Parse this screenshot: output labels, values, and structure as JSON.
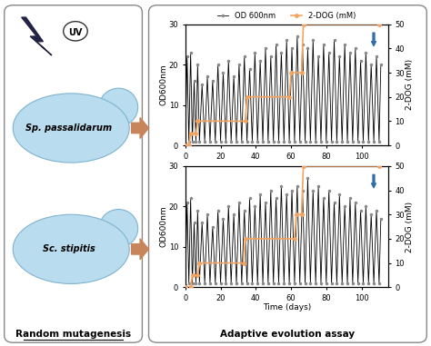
{
  "left_panel": {
    "label": "Random mutagenesis",
    "icon": "UV",
    "strains": [
      "Sp. passalidarum",
      "Sc. stipitis"
    ]
  },
  "right_panel": {
    "label": "Adaptive evolution assay"
  },
  "chart_data": [
    {
      "type": "line",
      "y_label": "OD600nm",
      "y2_label": "2-DOG (mM)",
      "legend": "top",
      "xlim": [
        0,
        115
      ],
      "xticks": [
        0,
        20,
        40,
        60,
        80,
        100
      ],
      "ylim": [
        0,
        30
      ],
      "yticks": [
        0,
        10,
        20,
        30
      ],
      "y2lim": [
        0,
        50
      ],
      "y2ticks": [
        0,
        10,
        20,
        30,
        40,
        50
      ],
      "series": [
        {
          "name": "OD 600nm",
          "color": "#000000",
          "marker": "o",
          "line_style": "solid",
          "x": [
            0,
            1,
            2,
            3,
            4,
            5,
            6,
            7,
            8,
            9.5,
            11,
            12.5,
            14,
            15.5,
            17,
            18.5,
            20,
            21.5,
            23,
            24.5,
            26,
            27.5,
            29,
            30.5,
            32,
            33.5,
            35,
            36.5,
            38,
            39.5,
            41,
            42.5,
            44,
            45.5,
            47,
            48.5,
            50,
            51.5,
            53,
            54.5,
            56,
            57.5,
            59,
            60.5,
            62,
            63.5,
            65,
            66.5,
            68,
            69.5,
            71,
            72.5,
            74,
            75.5,
            77,
            78.5,
            80,
            81.5,
            83,
            84.5,
            86,
            87.5,
            89,
            90.5,
            92,
            93.5,
            95,
            96.5,
            98,
            99.5,
            101,
            102.5,
            104,
            105.5,
            107,
            108.5,
            110,
            111
          ],
          "values": [
            0.5,
            22,
            1,
            23,
            1,
            16,
            1,
            20,
            1,
            15,
            1,
            17,
            1,
            16,
            1,
            20,
            1,
            18,
            1,
            21,
            1,
            17,
            1,
            20,
            1,
            22,
            1,
            19,
            1,
            23,
            1,
            21,
            1,
            24,
            1,
            22,
            1,
            25,
            1,
            23,
            1,
            26,
            1,
            24,
            1,
            27,
            1,
            25,
            1,
            24,
            1,
            26,
            1,
            22,
            1,
            25,
            1,
            23,
            1,
            26,
            1,
            22,
            1,
            25,
            1,
            23,
            1,
            24,
            1,
            21,
            1,
            23,
            1,
            20,
            1,
            22,
            1,
            20
          ]
        },
        {
          "name": "2-DOG (mM)",
          "axis": "y2",
          "color": "#f4a460",
          "marker": "o",
          "line_style": "solid",
          "x": [
            0,
            2,
            3,
            6,
            7,
            34,
            35,
            59,
            60,
            66,
            67,
            110
          ],
          "values": [
            0,
            0,
            5,
            5,
            10,
            10,
            20,
            20,
            30,
            30,
            50,
            50
          ]
        }
      ]
    },
    {
      "type": "line",
      "x_label": "Time (days)",
      "y_label": "OD600nm",
      "y2_label": "2-DOG (mM)",
      "xlim": [
        0,
        115
      ],
      "xticks": [
        0,
        20,
        40,
        60,
        80,
        100
      ],
      "ylim": [
        0,
        30
      ],
      "yticks": [
        0,
        10,
        20,
        30
      ],
      "y2lim": [
        0,
        50
      ],
      "y2ticks": [
        0,
        10,
        20,
        30,
        40,
        50
      ],
      "series": [
        {
          "color": "#000000",
          "marker": "o",
          "line_style": "solid",
          "x": [
            0,
            1,
            2,
            3,
            4,
            5,
            6,
            7,
            8,
            9.5,
            11,
            12.5,
            14,
            15.5,
            17,
            18.5,
            20,
            21.5,
            23,
            24.5,
            26,
            27.5,
            29,
            30.5,
            32,
            33.5,
            35,
            36.5,
            38,
            39.5,
            41,
            42.5,
            44,
            45.5,
            47,
            48.5,
            50,
            51.5,
            53,
            54.5,
            56,
            57.5,
            59,
            60.5,
            62,
            63.5,
            65,
            66.5,
            68,
            69.5,
            71,
            72.5,
            74,
            75.5,
            77,
            78.5,
            80,
            81.5,
            83,
            84.5,
            86,
            87.5,
            89,
            90.5,
            92,
            93.5,
            95,
            96.5,
            98,
            99.5,
            101,
            102.5,
            104,
            105.5,
            107,
            108.5,
            110,
            111
          ],
          "values": [
            0.5,
            21,
            1,
            22,
            1,
            16,
            1,
            19,
            1,
            16,
            1,
            18,
            1,
            15,
            1,
            19,
            1,
            17,
            1,
            20,
            1,
            18,
            1,
            21,
            1,
            19,
            1,
            22,
            1,
            20,
            1,
            23,
            1,
            21,
            1,
            24,
            1,
            22,
            1,
            25,
            1,
            23,
            1,
            24,
            1,
            25,
            1,
            24,
            1,
            27,
            1,
            24,
            1,
            25,
            1,
            22,
            1,
            24,
            1,
            21,
            1,
            23,
            1,
            20,
            1,
            22,
            1,
            21,
            1,
            19,
            1,
            20,
            1,
            18,
            1,
            19,
            1,
            17
          ]
        },
        {
          "axis": "y2",
          "color": "#f4a460",
          "marker": "o",
          "line_style": "solid",
          "x": [
            0,
            3,
            4,
            7,
            8,
            33,
            34,
            62,
            63,
            66,
            67,
            110
          ],
          "values": [
            0,
            0,
            5,
            5,
            10,
            10,
            20,
            20,
            30,
            30,
            50,
            50
          ]
        }
      ]
    }
  ]
}
